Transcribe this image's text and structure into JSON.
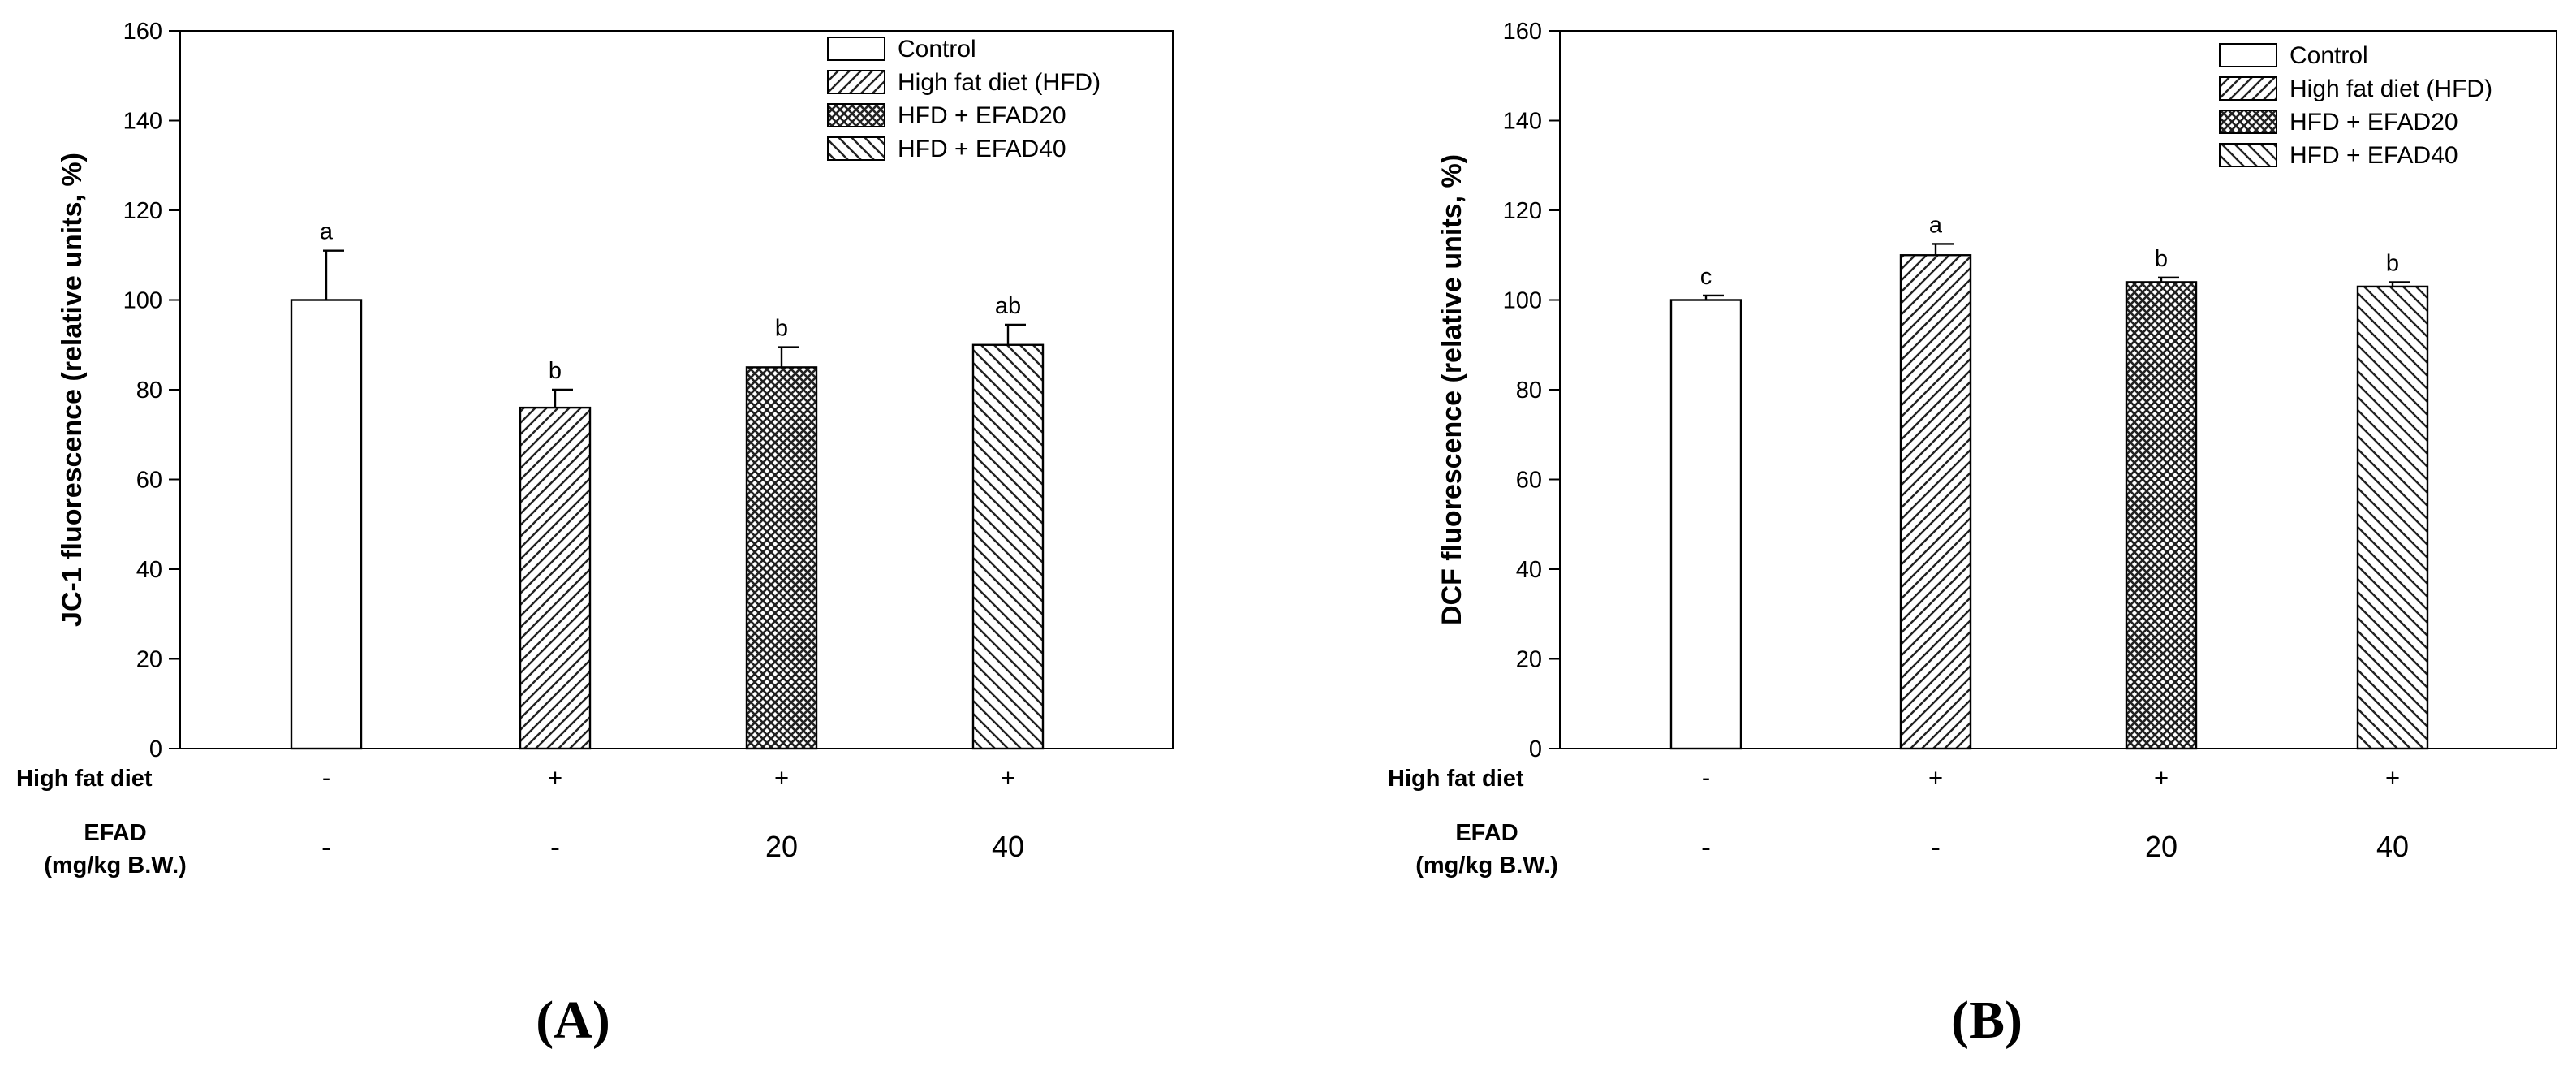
{
  "chart_data": [
    {
      "type": "bar",
      "panel_label": "(A)",
      "ylabel": "JC-1 fluorescence (relative units, %)",
      "xlabel": "",
      "ylim": [
        0,
        160
      ],
      "yticks": [
        0,
        20,
        40,
        60,
        80,
        100,
        120,
        140,
        160
      ],
      "categories": [
        "Control",
        "High fat diet (HFD)",
        "HFD + EFAD20",
        "HFD + EFAD40"
      ],
      "values": [
        100,
        76,
        85,
        90
      ],
      "errors": [
        11,
        4,
        4.5,
        4.5
      ],
      "significance": [
        "a",
        "b",
        "b",
        "ab"
      ],
      "row_labels": {
        "high_fat_diet": "High fat diet",
        "efad_line1": "EFAD",
        "efad_line2": "(mg/kg B.W.)"
      },
      "high_fat_diet": [
        "-",
        "+",
        "+",
        "+"
      ],
      "efad": [
        "-",
        "-",
        "20",
        "40"
      ],
      "legend": [
        "Control",
        "High fat diet (HFD)",
        "HFD + EFAD20",
        "HFD + EFAD40"
      ],
      "legend_position": "top-right",
      "grid": false
    },
    {
      "type": "bar",
      "panel_label": "(B)",
      "ylabel": "DCF fluorescence (relative units, %)",
      "xlabel": "",
      "ylim": [
        0,
        160
      ],
      "yticks": [
        0,
        20,
        40,
        60,
        80,
        100,
        120,
        140,
        160
      ],
      "categories": [
        "Control",
        "High fat diet (HFD)",
        "HFD + EFAD20",
        "HFD + EFAD40"
      ],
      "values": [
        100,
        110,
        104,
        103
      ],
      "errors": [
        1,
        2.5,
        1,
        1
      ],
      "significance": [
        "c",
        "a",
        "b",
        "b"
      ],
      "row_labels": {
        "high_fat_diet": "High fat diet",
        "efad_line1": "EFAD",
        "efad_line2": "(mg/kg B.W.)"
      },
      "high_fat_diet": [
        "-",
        "+",
        "+",
        "+"
      ],
      "efad": [
        "-",
        "-",
        "20",
        "40"
      ],
      "legend": [
        "Control",
        "High fat diet (HFD)",
        "HFD + EFAD20",
        "HFD + EFAD40"
      ],
      "legend_position": "top-right",
      "grid": false
    }
  ]
}
